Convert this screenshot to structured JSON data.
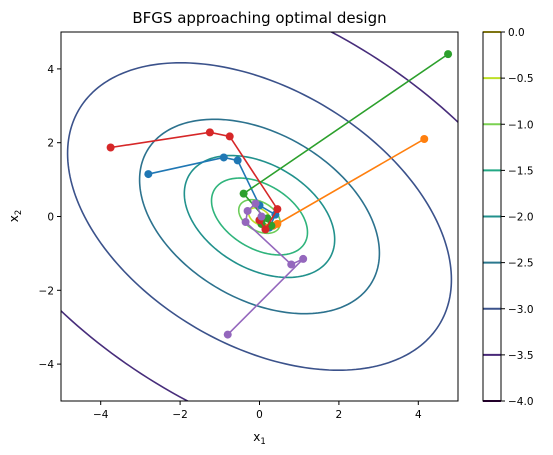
{
  "chart_data": {
    "type": "contour",
    "title": "BFGS approaching optimal design",
    "xlabel": "x",
    "xlabel_sub": "1",
    "ylabel": "x",
    "ylabel_sub": "2",
    "xlim": [
      -5,
      5
    ],
    "ylim": [
      -5,
      5
    ],
    "x_ticks": [
      -4,
      -2,
      0,
      2,
      4
    ],
    "y_ticks": [
      -4,
      -2,
      0,
      2,
      4
    ],
    "x_tick_labels": [
      "−4",
      "−2",
      "0",
      "2",
      "4"
    ],
    "y_tick_labels": [
      "−4",
      "−2",
      "0",
      "2",
      "4"
    ],
    "grid": false,
    "contours": [
      {
        "level": -0.5,
        "a": 0.3,
        "b": 0.2,
        "angle": -35,
        "color": "#bddf26"
      },
      {
        "level": -1.0,
        "a": 0.58,
        "b": 0.38,
        "angle": -35,
        "color": "#6ccd5a"
      },
      {
        "level": -1.5,
        "a": 1.35,
        "b": 0.85,
        "angle": -35,
        "color": "#2fb47c"
      },
      {
        "level": -2.0,
        "a": 2.1,
        "b": 1.38,
        "angle": -35,
        "color": "#21918c"
      },
      {
        "level": -2.5,
        "a": 3.35,
        "b": 2.2,
        "angle": -35,
        "color": "#2c728e"
      },
      {
        "level": -3.0,
        "a": 5.4,
        "b": 3.4,
        "angle": -35,
        "color": "#3b528b"
      },
      {
        "level": -3.5,
        "a": 8.8,
        "b": 5.2,
        "angle": -35,
        "color": "#472d7b"
      }
    ],
    "series": [
      {
        "color": "#1f77b4",
        "points": [
          [
            -2.8,
            1.15
          ],
          [
            -0.9,
            1.6
          ],
          [
            -0.55,
            1.52
          ],
          [
            0.0,
            0.3
          ],
          [
            0.4,
            0.05
          ],
          [
            0.25,
            -0.3
          ],
          [
            0.05,
            -0.1
          ]
        ]
      },
      {
        "color": "#ff7f0e",
        "points": [
          [
            4.15,
            2.1
          ],
          [
            0.45,
            -0.2
          ],
          [
            0.35,
            -0.25
          ],
          [
            0.15,
            -0.3
          ],
          [
            0.05,
            -0.2
          ],
          [
            0.0,
            -0.1
          ]
        ]
      },
      {
        "color": "#2ca02c",
        "points": [
          [
            4.75,
            4.4
          ],
          [
            -0.4,
            0.62
          ],
          [
            0.3,
            -0.25
          ],
          [
            0.2,
            -0.05
          ],
          [
            0.05,
            -0.2
          ],
          [
            0.0,
            -0.1
          ]
        ]
      },
      {
        "color": "#d62728",
        "points": [
          [
            -3.75,
            1.87
          ],
          [
            -1.25,
            2.28
          ],
          [
            -0.75,
            2.17
          ],
          [
            0.45,
            0.2
          ],
          [
            0.15,
            -0.35
          ],
          [
            0.0,
            -0.1
          ]
        ]
      },
      {
        "color": "#9467bd",
        "points": [
          [
            -0.8,
            -3.2
          ],
          [
            1.1,
            -1.15
          ],
          [
            0.8,
            -1.3
          ],
          [
            -0.35,
            -0.15
          ],
          [
            -0.3,
            0.15
          ],
          [
            -0.1,
            0.35
          ],
          [
            0.05,
            0.0
          ]
        ]
      }
    ],
    "colorbar": {
      "ticks": [
        0.0,
        -0.5,
        -1.0,
        -1.5,
        -2.0,
        -2.5,
        -3.0,
        -3.5,
        -4.0
      ],
      "tick_labels": [
        "0.0",
        "−0.5",
        "−1.0",
        "−1.5",
        "−2.0",
        "−2.5",
        "−3.0",
        "−3.5",
        "−4.0"
      ],
      "min": -4.0,
      "max": 0.0,
      "lines": [
        {
          "level": 0.0,
          "color": "#fde725"
        },
        {
          "level": -0.5,
          "color": "#bddf26"
        },
        {
          "level": -1.0,
          "color": "#7ad151"
        },
        {
          "level": -1.5,
          "color": "#22a884"
        },
        {
          "level": -2.0,
          "color": "#21918c"
        },
        {
          "level": -2.5,
          "color": "#2a788e"
        },
        {
          "level": -3.0,
          "color": "#3b528b"
        },
        {
          "level": -3.5,
          "color": "#482878"
        },
        {
          "level": -4.0,
          "color": "#440154"
        }
      ]
    }
  }
}
